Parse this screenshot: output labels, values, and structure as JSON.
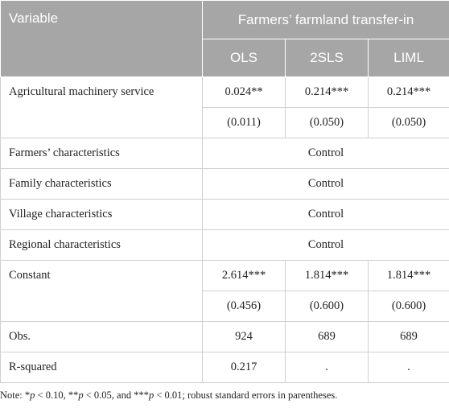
{
  "header": {
    "variable_label": "Variable",
    "group_label": "Farmers’ farmland transfer-in",
    "columns": [
      "OLS",
      "2SLS",
      "LIML"
    ]
  },
  "rows": {
    "agri_service": {
      "label": "Agricultural machinery service",
      "coef": [
        "0.024**",
        "0.214***",
        "0.214***"
      ],
      "se": [
        "(0.011)",
        "(0.050)",
        "(0.050)"
      ]
    },
    "farmers_char": {
      "label": "Farmers’ characteristics",
      "value": "Control"
    },
    "family_char": {
      "label": "Family characteristics",
      "value": "Control"
    },
    "village_char": {
      "label": "Village characteristics",
      "value": "Control"
    },
    "regional_char": {
      "label": "Regional characteristics",
      "value": "Control"
    },
    "constant": {
      "label": "Constant",
      "coef": [
        "2.614***",
        "1.814***",
        "1.814***"
      ],
      "se": [
        "(0.456)",
        "(0.600)",
        "(0.600)"
      ]
    },
    "obs": {
      "label": "Obs.",
      "values": [
        "924",
        "689",
        "689"
      ]
    },
    "r_squared": {
      "label": "R-squared",
      "values": [
        "0.217",
        ".",
        "."
      ]
    }
  },
  "note": {
    "prefix": "Note: *",
    "p1": "p",
    "t1": " < 0.10, **",
    "p2": "p",
    "t2": " < 0.05, and ***",
    "p3": "p",
    "t3": " < 0.01; robust standard errors in parentheses."
  }
}
